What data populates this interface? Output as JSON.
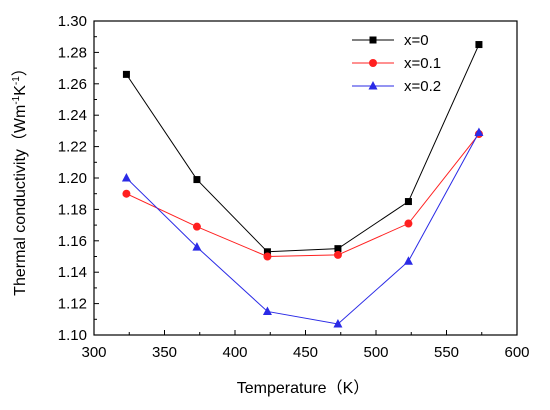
{
  "chart_data": {
    "type": "line",
    "xlabel": "Temperature（K）",
    "ylabel_parts": [
      "Thermal conductivity（Wm",
      "-1",
      "K",
      "-1",
      "）"
    ],
    "xlim": [
      300,
      600
    ],
    "ylim": [
      1.1,
      1.3
    ],
    "xticks": [
      300,
      350,
      400,
      450,
      500,
      550,
      600
    ],
    "yticks": [
      "1.10",
      "1.12",
      "1.14",
      "1.16",
      "1.18",
      "1.20",
      "1.22",
      "1.24",
      "1.26",
      "1.28",
      "1.30"
    ],
    "grid": false,
    "legend_position": "top-right",
    "x": [
      323,
      373,
      423,
      473,
      523,
      573
    ],
    "series": [
      {
        "name": "x=0",
        "values": [
          1.266,
          1.199,
          1.153,
          1.155,
          1.185,
          1.285
        ],
        "marker": "square",
        "color": "#000000"
      },
      {
        "name": "x=0.1",
        "values": [
          1.19,
          1.169,
          1.15,
          1.151,
          1.171,
          1.228
        ],
        "marker": "circle",
        "color": "#ff2020"
      },
      {
        "name": "x=0.2",
        "values": [
          1.2,
          1.156,
          1.115,
          1.107,
          1.147,
          1.229
        ],
        "marker": "triangle",
        "color": "#2a2ae6"
      }
    ]
  }
}
